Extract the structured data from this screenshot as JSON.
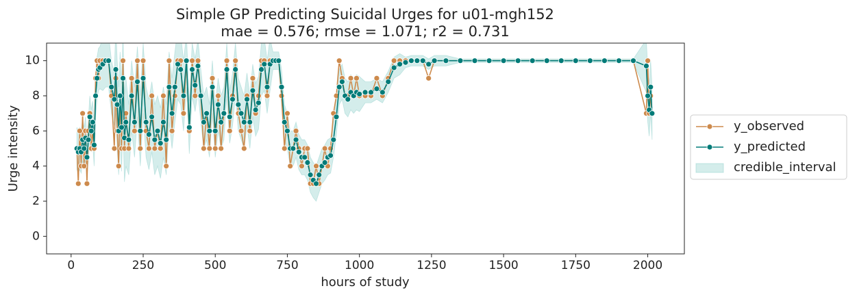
{
  "chart_data": {
    "type": "line",
    "title": [
      "Simple GP Predicting Suicidal Urges for u01-mgh152",
      "mae = 0.576; rmse = 1.071; r2 = 0.731"
    ],
    "xlabel": "hours of study",
    "ylabel": "Urge intensity",
    "xlim": [
      -85,
      2127
    ],
    "ylim": [
      -1,
      11
    ],
    "xticks": [
      0,
      250,
      500,
      750,
      1000,
      1250,
      1500,
      1750,
      2000
    ],
    "yticks": [
      0,
      2,
      4,
      6,
      8,
      10
    ],
    "legend": "outside right",
    "x": [
      20,
      25,
      30,
      35,
      40,
      45,
      50,
      55,
      60,
      65,
      70,
      75,
      80,
      85,
      90,
      95,
      100,
      110,
      120,
      130,
      140,
      150,
      155,
      160,
      165,
      170,
      175,
      180,
      185,
      190,
      200,
      210,
      220,
      230,
      240,
      250,
      260,
      270,
      280,
      290,
      300,
      310,
      320,
      330,
      340,
      350,
      360,
      370,
      380,
      390,
      400,
      410,
      420,
      430,
      440,
      450,
      460,
      470,
      480,
      490,
      500,
      510,
      520,
      530,
      540,
      550,
      560,
      570,
      580,
      590,
      600,
      610,
      620,
      630,
      640,
      650,
      660,
      670,
      680,
      690,
      700,
      710,
      720,
      730,
      740,
      750,
      760,
      770,
      780,
      790,
      800,
      810,
      820,
      830,
      840,
      850,
      860,
      870,
      880,
      890,
      900,
      910,
      920,
      930,
      940,
      950,
      960,
      970,
      980,
      990,
      1000,
      1020,
      1040,
      1060,
      1080,
      1100,
      1120,
      1140,
      1160,
      1180,
      1200,
      1220,
      1240,
      1260,
      1300,
      1350,
      1400,
      1450,
      1500,
      1550,
      1600,
      1650,
      1700,
      1750,
      1800,
      1850,
      1900,
      1950,
      1995,
      2000,
      2005,
      2010,
      2015
    ],
    "series": [
      {
        "name": "y_observed",
        "color": "#cd8a4c",
        "values": [
          5,
          3,
          6,
          4,
          7,
          4,
          6,
          3,
          6,
          7,
          5,
          6,
          5,
          9,
          10,
          9,
          10,
          10,
          10,
          10,
          8,
          5,
          9,
          6,
          4,
          8,
          5,
          10,
          5,
          7,
          5,
          9,
          6,
          10,
          5,
          10,
          6,
          5,
          8,
          5,
          6,
          5,
          8,
          4,
          10,
          6,
          8,
          10,
          10,
          7,
          10,
          6,
          10,
          8,
          10,
          8,
          5,
          7,
          5,
          9,
          5,
          8,
          5,
          7,
          10,
          6,
          8,
          10,
          7,
          6,
          5,
          8,
          6,
          9,
          7,
          8,
          10,
          10,
          8,
          10,
          10,
          10,
          10,
          8,
          5,
          7,
          4,
          5,
          6,
          5,
          4,
          5,
          5,
          3,
          3,
          4,
          3,
          4,
          5,
          4,
          5,
          7,
          8,
          10,
          9,
          8,
          8,
          9,
          8,
          9,
          8,
          8,
          8,
          9,
          8,
          9,
          10,
          10,
          10,
          10,
          10,
          10,
          9,
          10,
          10,
          10,
          10,
          10,
          10,
          10,
          10,
          10,
          10,
          10,
          10,
          10,
          10,
          10,
          7,
          10,
          7,
          8,
          7
        ]
      },
      {
        "name": "y_predicted",
        "color": "#007b78",
        "values": [
          5,
          4.8,
          5,
          4.8,
          5.5,
          5,
          5.6,
          4.5,
          5.5,
          6.8,
          6,
          6.5,
          5.2,
          8,
          9,
          9.5,
          9.6,
          9.8,
          10,
          10,
          8.5,
          7.8,
          9.5,
          7.5,
          6,
          8,
          6.2,
          9,
          5.6,
          6.5,
          5.5,
          8,
          6.5,
          8.8,
          6,
          9,
          6.5,
          5.8,
          6.8,
          5.5,
          6,
          5.3,
          6.5,
          5.5,
          8.5,
          7,
          8.5,
          9.8,
          9.5,
          8,
          10,
          6.2,
          9.5,
          8.6,
          9.7,
          8,
          6.5,
          7,
          6,
          8.5,
          6,
          7.5,
          6.5,
          7,
          9.5,
          6.8,
          7.8,
          9.5,
          7.5,
          7,
          6.5,
          7.8,
          6.5,
          8.3,
          7.2,
          7.6,
          9.5,
          9.8,
          8.5,
          9.8,
          10,
          10,
          10,
          8.5,
          6.5,
          6,
          5,
          5,
          5.5,
          4.8,
          4.5,
          4.5,
          4.2,
          3.5,
          3.2,
          3,
          3.5,
          4,
          4.2,
          4.5,
          4.6,
          5.5,
          6.8,
          8.5,
          8.8,
          8,
          7.8,
          8.2,
          8,
          8.2,
          8.1,
          8.2,
          8.2,
          8.4,
          8.2,
          8.8,
          9.6,
          9.8,
          9.9,
          10,
          10,
          10,
          9.8,
          10,
          10,
          10,
          10,
          10,
          10,
          10,
          10,
          10,
          10,
          10,
          10,
          10,
          10,
          10,
          9.7,
          8,
          7.2,
          8.5,
          7
        ]
      },
      {
        "name": "credible_interval",
        "color": "#8fcfcb",
        "lower": [
          3.8,
          3.6,
          3.8,
          3.6,
          4.3,
          3.8,
          4.4,
          3.3,
          4.3,
          5.6,
          4.8,
          5.3,
          4,
          6.8,
          7.8,
          8.3,
          8.4,
          8.3,
          8.5,
          8.5,
          7,
          6.3,
          7,
          5,
          3.5,
          5.5,
          3.7,
          6.5,
          3.1,
          4,
          3.5,
          6,
          4.5,
          6.8,
          4,
          7,
          4.5,
          3.8,
          4.8,
          3.5,
          4,
          3.3,
          4.5,
          3.5,
          6.5,
          5,
          6.5,
          7.8,
          7.5,
          6,
          8.5,
          4.7,
          8,
          7.1,
          8.2,
          6.5,
          5,
          5.5,
          4.5,
          7,
          4.5,
          6,
          5,
          5.5,
          8,
          5.3,
          6.3,
          8,
          6,
          5.5,
          5,
          6.3,
          5,
          6.8,
          5.7,
          6.1,
          8,
          8.3,
          7,
          8.3,
          9.5,
          9.5,
          9.5,
          7.5,
          5.5,
          5,
          4,
          4,
          4.5,
          3.8,
          3.5,
          3.5,
          3.2,
          2.5,
          2.2,
          2,
          2.5,
          3,
          3.2,
          3.5,
          3.6,
          4.5,
          5.8,
          7.5,
          7.8,
          7,
          6.8,
          7.2,
          7,
          7.2,
          7.1,
          7.6,
          7.6,
          7.8,
          7.6,
          8.2,
          9,
          9.2,
          9.6,
          9.7,
          9.7,
          9.7,
          9.5,
          9.7,
          9.7,
          9.9,
          9.9,
          9.9,
          9.9,
          9.9,
          9.9,
          9.9,
          9.9,
          9.9,
          9.9,
          9.9,
          9.9,
          9.9,
          8.2,
          6.5,
          5.7,
          7,
          5.5
        ],
        "upper": [
          6.2,
          6,
          6.2,
          6,
          6.7,
          6.2,
          6.8,
          5.7,
          6.7,
          8,
          7.2,
          7.7,
          6.4,
          9.2,
          10.2,
          10.7,
          10.8,
          11.3,
          11.5,
          11.5,
          10,
          9.3,
          12,
          10,
          8.5,
          10.5,
          8.7,
          11.5,
          8.1,
          9,
          7.5,
          10,
          8.5,
          10.8,
          8,
          11,
          8.5,
          7.8,
          8.8,
          7.5,
          8,
          7.3,
          8.5,
          7.5,
          10.5,
          9,
          10.5,
          11.8,
          11.5,
          10,
          11.5,
          7.7,
          11,
          10.1,
          11.2,
          9.5,
          8,
          8.5,
          7.5,
          10,
          7.5,
          9,
          8,
          8.5,
          11,
          8.3,
          9.3,
          11,
          9,
          8.5,
          8,
          9.3,
          8,
          9.8,
          8.7,
          9.1,
          11,
          11.3,
          10,
          11.3,
          10.5,
          10.5,
          10.5,
          9.5,
          7.5,
          7,
          6,
          6,
          6.5,
          5.8,
          5.5,
          5.5,
          5.2,
          4.5,
          4.2,
          4,
          4.5,
          5,
          5.2,
          5.5,
          5.6,
          6.5,
          7.8,
          9.5,
          9.8,
          9,
          8.8,
          9.2,
          9,
          9.2,
          9.1,
          8.8,
          8.8,
          9,
          8.8,
          9.4,
          10.2,
          10.4,
          10.2,
          10.3,
          10.3,
          10.3,
          10.1,
          10.3,
          10.3,
          10.1,
          10.1,
          10.1,
          10.1,
          10.1,
          10.1,
          10.1,
          10.1,
          10.1,
          10.1,
          10.1,
          10.1,
          10.1,
          11.2,
          9.5,
          8.7,
          10,
          8.5
        ]
      }
    ]
  }
}
